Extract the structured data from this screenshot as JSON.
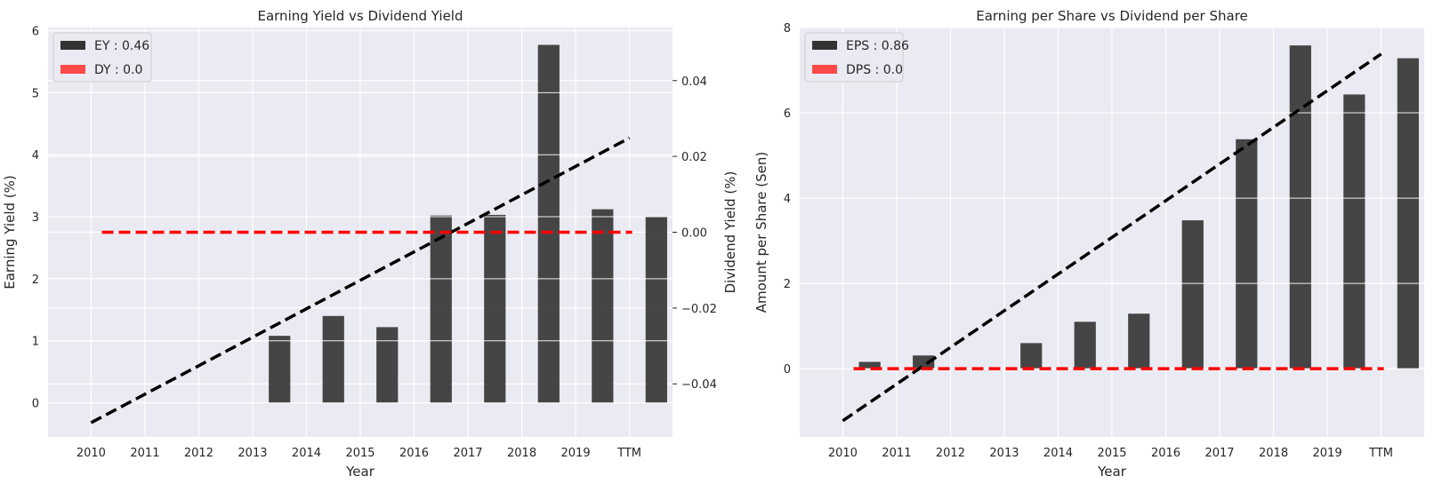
{
  "chart_data": [
    {
      "type": "bar",
      "title": "Earning Yield vs Dividend Yield",
      "xlabel": "Year",
      "ylabel": "Earning Yield (%)",
      "y2label": "Dividend Yield (%)",
      "categories": [
        "2010",
        "2011",
        "2012",
        "2013",
        "2014",
        "2015",
        "2016",
        "2017",
        "2018",
        "2019",
        "TTM"
      ],
      "ylim": [
        -0.55,
        6.05
      ],
      "yticks": [
        0,
        1,
        2,
        3,
        4,
        5,
        6
      ],
      "y2lim": [
        -0.054,
        0.054
      ],
      "y2ticks": [
        -0.04,
        -0.02,
        0.0,
        0.02,
        0.04
      ],
      "y2ticklabels": [
        "−0.04",
        "−0.02",
        "0.00",
        "0.02",
        "0.04"
      ],
      "grid": true,
      "legend_position": "top-left",
      "series": [
        {
          "name": "EY : 0.46",
          "kind": "bar",
          "color": "#333333",
          "values": [
            null,
            null,
            null,
            1.08,
            1.4,
            1.22,
            3.02,
            3.03,
            5.77,
            3.12,
            3.0
          ]
        },
        {
          "name": "DY : 0.0",
          "kind": "bar",
          "axis": "right",
          "color": "#ff4040",
          "values": [
            0,
            0,
            0,
            0,
            0,
            0,
            0,
            0,
            0,
            0,
            0
          ]
        }
      ],
      "trend_lines": [
        {
          "series": "EY",
          "color": "#000000",
          "style": "dashed",
          "x_start": "2010",
          "x_end": "TTM",
          "y_start": -0.32,
          "y_end": 4.27
        },
        {
          "series": "DY",
          "color": "#ff0000",
          "style": "dashed",
          "axis": "right",
          "x_start": "2010",
          "x_end": "TTM",
          "y_start": 0.0,
          "y_end": 0.0
        }
      ]
    },
    {
      "type": "bar",
      "title": "Earning per Share vs Dividend per Share",
      "xlabel": "Year",
      "ylabel": "Amount per Share (Sen)",
      "categories": [
        "2010",
        "2011",
        "2012",
        "2013",
        "2014",
        "2015",
        "2016",
        "2017",
        "2018",
        "2019",
        "TTM"
      ],
      "ylim": [
        -1.6,
        8.0
      ],
      "yticks": [
        0,
        2,
        4,
        6,
        8
      ],
      "grid": true,
      "legend_position": "top-left",
      "series": [
        {
          "name": "EPS : 0.86",
          "kind": "bar",
          "color": "#333333",
          "values": [
            0.16,
            0.31,
            null,
            0.6,
            1.1,
            1.29,
            3.48,
            5.38,
            7.58,
            6.43,
            7.28
          ]
        },
        {
          "name": "DPS : 0.0",
          "kind": "bar",
          "color": "#ff4040",
          "values": [
            0,
            0,
            0,
            0,
            0,
            0,
            0,
            0,
            0,
            0,
            0
          ]
        }
      ],
      "trend_lines": [
        {
          "series": "EPS",
          "color": "#000000",
          "style": "dashed",
          "x_start": "2010",
          "x_end": "TTM",
          "y_start": -1.22,
          "y_end": 7.38
        },
        {
          "series": "DPS",
          "color": "#ff0000",
          "style": "dashed",
          "x_start": "2010",
          "x_end": "TTM",
          "y_start": 0.0,
          "y_end": 0.0
        }
      ]
    }
  ]
}
